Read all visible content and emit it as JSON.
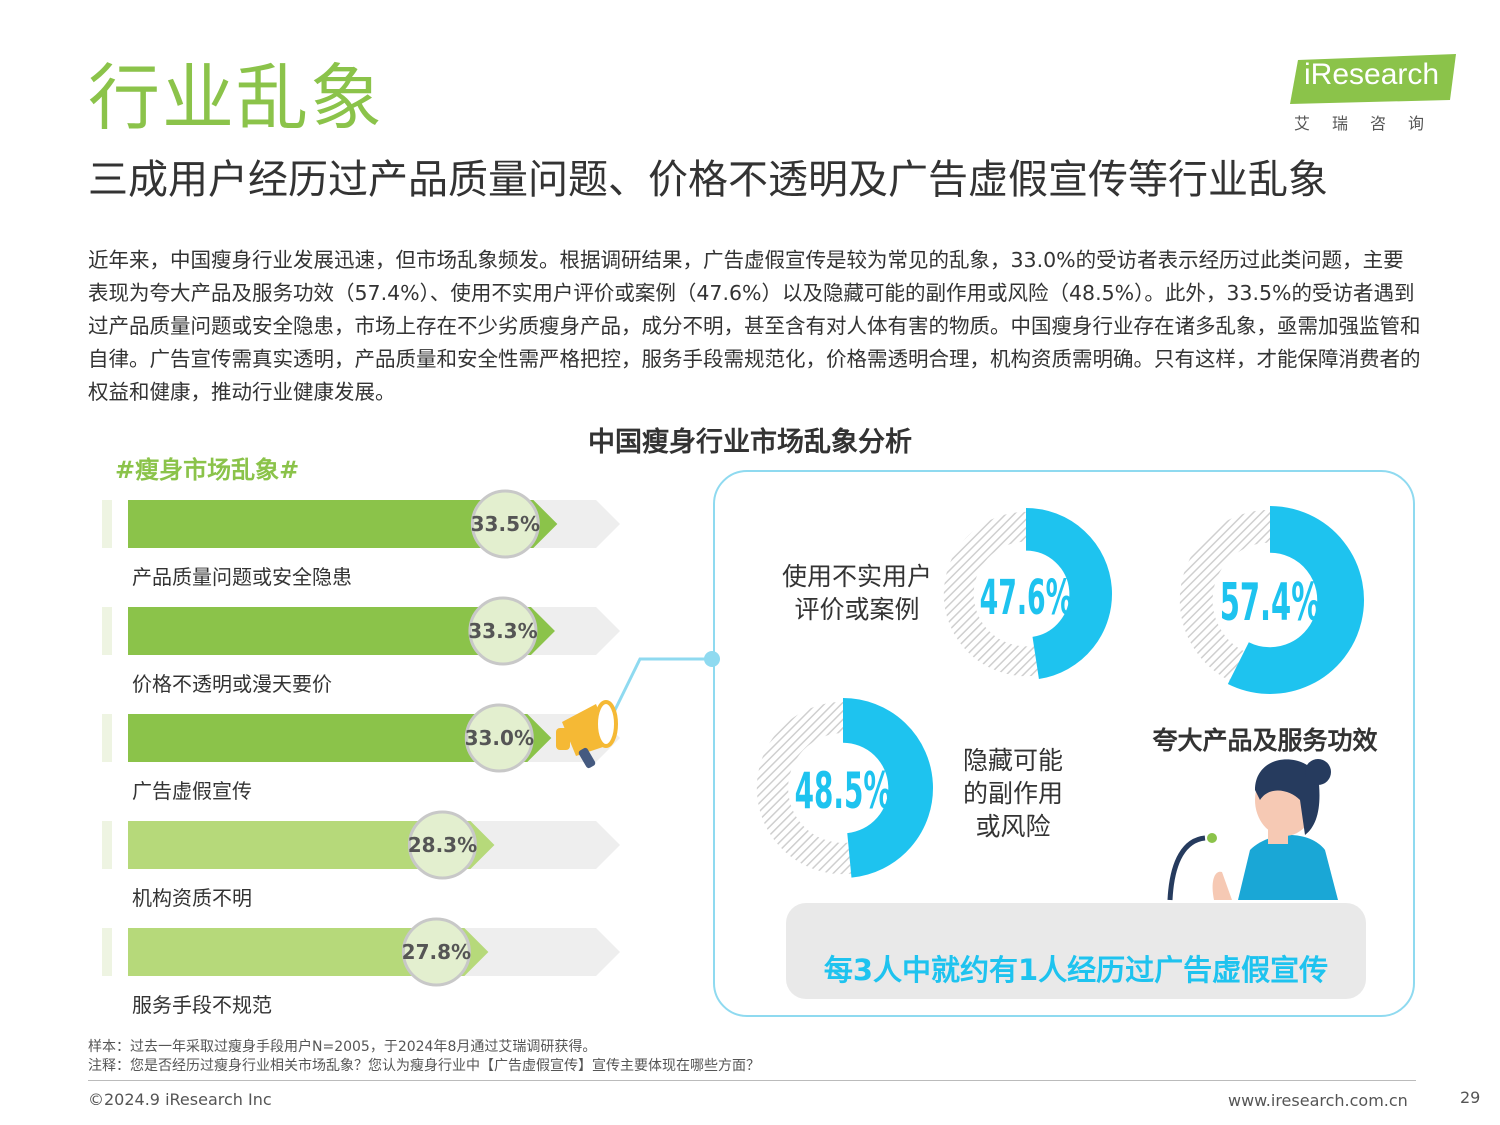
{
  "header": {
    "title": "行业乱象",
    "subtitle": "三成用户经历过产品质量问题、价格不透明及广告虚假宣传等行业乱象",
    "logo_text": "iResearch",
    "logo_cn": "艾瑞咨询"
  },
  "intro": "近年来，中国瘦身行业发展迅速，但市场乱象频发。根据调研结果，广告虚假宣传是较为常见的乱象，33.0%的受访者表示经历过此类问题，主要表现为夸大产品及服务功效（57.4%）、使用不实用户评价或案例（47.6%）以及隐藏可能的副作用或风险（48.5%）。此外，33.5%的受访者遇到过产品质量问题或安全隐患，市场上存在不少劣质瘦身产品，成分不明，甚至含有对人体有害的物质。中国瘦身行业存在诸多乱象，亟需加强监管和自律。广告宣传需真实透明，产品质量和安全性需严格把控，服务手段需规范化，价格需透明合理，机构资质需明确。只有这样，才能保障消费者的权益和健康，推动行业健康发展。",
  "colors": {
    "green_dark": "#8bc34a",
    "green_light": "#b6d97a",
    "cyan": "#1ec3ef",
    "track": "#eeeeee"
  },
  "chart_data": [
    {
      "type": "bar",
      "title": "中国瘦身行业市场乱象分析",
      "subtitle": "#瘦身市场乱象#",
      "categories": [
        "产品质量问题或安全隐患",
        "价格不透明或漫天要价",
        "广告虚假宣传",
        "机构资质不明",
        "服务手段不规范"
      ],
      "values": [
        33.5,
        33.3,
        33.0,
        28.3,
        27.8
      ],
      "value_labels": [
        "33.5%",
        "33.3%",
        "33.0%",
        "28.3%",
        "27.8%"
      ],
      "emphasis": [
        "dark",
        "dark",
        "dark",
        "light",
        "light"
      ]
    },
    {
      "type": "pie",
      "categories": [
        "使用不实用户评价或案例",
        "夸大产品及服务功效",
        "隐藏可能的副作用或风险"
      ],
      "values": [
        47.6,
        57.4,
        48.5
      ],
      "value_labels": [
        "47.6%",
        "57.4%",
        "48.5%"
      ]
    }
  ],
  "panel": {
    "label_a_lines": [
      "使用不实用户",
      "评价或案例"
    ],
    "label_b": "夸大产品及服务功效",
    "label_c_lines": [
      "隐藏可能",
      "的副作用",
      "或风险"
    ],
    "banner": "每3人中就约有1人经历过广告虚假宣传"
  },
  "footer": {
    "sample": "样本：过去一年采取过瘦身手段用户N=2005，于2024年8月通过艾瑞调研获得。",
    "note": "注释：您是否经历过瘦身行业相关市场乱象？您认为瘦身行业中【广告虚假宣传】宣传主要体现在哪些方面？",
    "copyright": "©2024.9 iResearch Inc",
    "website": "www.iresearch.com.cn",
    "page": "29"
  }
}
